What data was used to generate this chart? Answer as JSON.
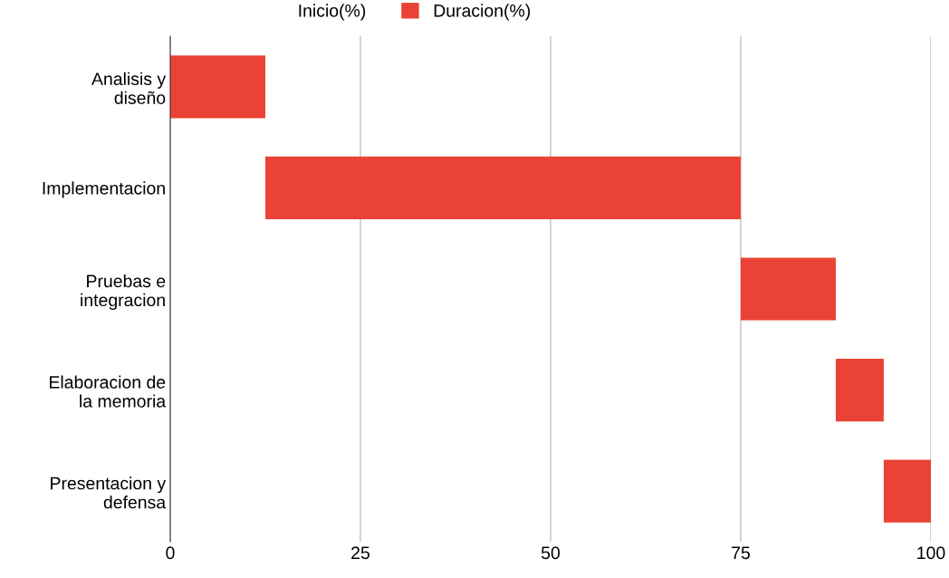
{
  "chart_data": {
    "type": "bar",
    "orientation": "horizontal",
    "categories": [
      "Analisis y diseño",
      "Implementacion",
      "Pruebas e integracion",
      "Elaboracion de la memoria",
      "Presentacion y defensa"
    ],
    "series": [
      {
        "name": "Inicio(%)",
        "values": [
          null,
          null,
          null,
          null,
          null
        ]
      },
      {
        "name": "Duracion(%)",
        "color": "#ea4335",
        "base": [
          0,
          12.5,
          75,
          87.5,
          93.8
        ],
        "values": [
          12.5,
          62.5,
          12.5,
          6.3,
          6.2
        ]
      }
    ],
    "xlim": [
      0,
      100
    ],
    "xticks": [
      0,
      25,
      50,
      75,
      100
    ],
    "grid": "x",
    "legend": "top"
  }
}
